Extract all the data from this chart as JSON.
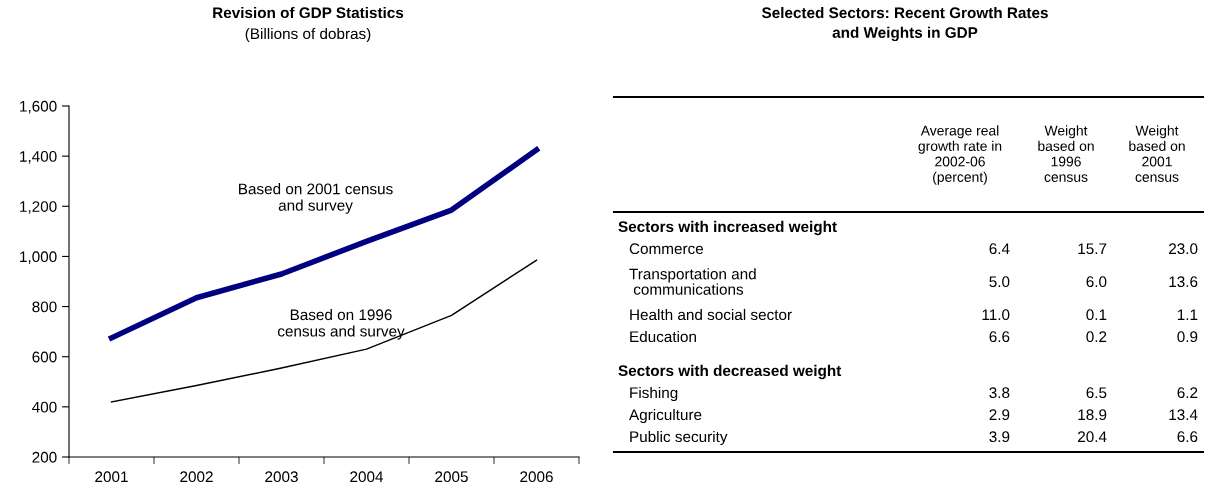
{
  "chart_data": [
    {
      "type": "line",
      "title": "Revision of GDP Statistics",
      "subtitle": "(Billions of dobras)",
      "categories": [
        "2001",
        "2002",
        "2003",
        "2004",
        "2005",
        "2006"
      ],
      "series": [
        {
          "name": "Based on 2001 census\nand survey",
          "color": "#000080",
          "values": [
            675,
            835,
            930,
            1060,
            1185,
            1425
          ]
        },
        {
          "name": "Based on 1996\ncensus and survey",
          "color": "#000000",
          "values": [
            420,
            485,
            555,
            630,
            765,
            985
          ]
        }
      ],
      "ylim": [
        200,
        1600
      ],
      "yticks": [
        {
          "value": 200,
          "label": "200"
        },
        {
          "value": 400,
          "label": "400"
        },
        {
          "value": 600,
          "label": "600"
        },
        {
          "value": 800,
          "label": "800"
        },
        {
          "value": 1000,
          "label": "1,000"
        },
        {
          "value": 1200,
          "label": "1,200"
        },
        {
          "value": 1400,
          "label": "1,400"
        },
        {
          "value": 1600,
          "label": "1,600"
        }
      ],
      "grid": false,
      "legend": false,
      "marker": "none",
      "line_style": "solid"
    },
    {
      "type": "other",
      "title": "Selected Sectors: Recent Growth Rates\nand Weights in GDP",
      "categories": [
        "Sectors with increased weight",
        "Commerce",
        "Transportation and\n communications",
        "Health and social sector",
        "Education",
        "Sectors with decreased weight",
        "Fishing",
        "Agriculture",
        "Public security"
      ],
      "series": [
        {
          "name": "Average real\ngrowth rate in\n2002-06\n(percent)",
          "values": [
            null,
            6.4,
            5.0,
            11.0,
            6.6,
            null,
            3.8,
            2.9,
            3.9
          ],
          "value_labels": [
            null,
            "6.4",
            "5.0",
            "11.0",
            "6.6",
            null,
            "3.8",
            "2.9",
            "3.9"
          ]
        },
        {
          "name": "Weight\nbased on\n1996\ncensus",
          "values": [
            null,
            15.7,
            6.0,
            0.1,
            0.2,
            null,
            6.5,
            18.9,
            20.4
          ],
          "value_labels": [
            null,
            "15.7",
            "6.0",
            "0.1",
            "0.2",
            null,
            "6.5",
            "18.9",
            "20.4"
          ]
        },
        {
          "name": "Weight\nbased on\n2001\ncensus",
          "values": [
            null,
            23.0,
            13.6,
            1.1,
            0.9,
            null,
            6.2,
            13.4,
            6.6
          ],
          "value_labels": [
            null,
            "23.0",
            "13.6",
            "1.1",
            "0.9",
            null,
            "6.2",
            "13.4",
            "6.6"
          ]
        }
      ]
    }
  ]
}
